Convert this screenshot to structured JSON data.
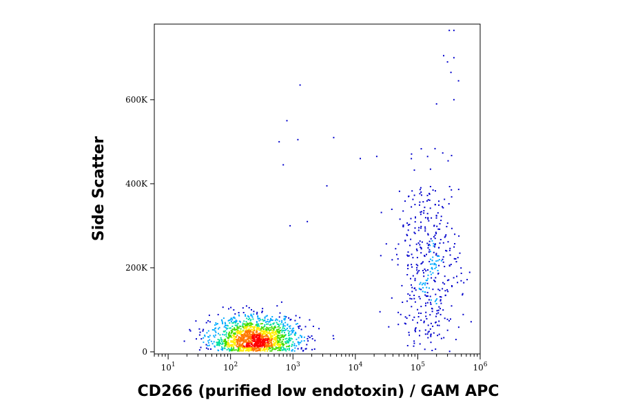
{
  "chart_data": {
    "type": "scatter",
    "style": "flow-cytometry density dot plot",
    "xlabel": "CD266 (purified low endotoxin) / GAM APC",
    "ylabel": "Side Scatter",
    "x_scale": "log",
    "xlim": [
      6,
      1000000
    ],
    "ylim": [
      -5000,
      780000
    ],
    "x_ticks": [
      {
        "value": 10,
        "base": "10",
        "exp": "1"
      },
      {
        "value": 100,
        "base": "10",
        "exp": "2"
      },
      {
        "value": 1000,
        "base": "10",
        "exp": "3"
      },
      {
        "value": 10000,
        "base": "10",
        "exp": "4"
      },
      {
        "value": 100000,
        "base": "10",
        "exp": "5"
      },
      {
        "value": 1000000,
        "base": "10",
        "exp": "6"
      }
    ],
    "y_ticks": [
      {
        "value": 0,
        "label": "0"
      },
      {
        "value": 200000,
        "label": "200K"
      },
      {
        "value": 400000,
        "label": "400K"
      },
      {
        "value": 600000,
        "label": "600K"
      }
    ],
    "grid": false,
    "legend": "none",
    "density_colors": [
      "#0000cc",
      "#00aaff",
      "#00e0a0",
      "#44dd00",
      "#ffee00",
      "#ff7700",
      "#ff0000"
    ],
    "populations": [
      {
        "name_shown": false,
        "x_center": 250,
        "x_log_sd": 0.35,
        "y_center": 30000,
        "y_sd": 30000,
        "count": 1500
      },
      {
        "name_shown": false,
        "x_center": 150000,
        "x_log_sd": 0.25,
        "y_center": 200000,
        "y_sd": 110000,
        "count": 450
      }
    ],
    "outlier_points": [
      {
        "x": 320000,
        "y": 765000
      },
      {
        "x": 380000,
        "y": 765000
      },
      {
        "x": 260000,
        "y": 705000
      },
      {
        "x": 380000,
        "y": 700000
      },
      {
        "x": 300000,
        "y": 690000
      },
      {
        "x": 340000,
        "y": 665000
      },
      {
        "x": 450000,
        "y": 645000
      },
      {
        "x": 1300,
        "y": 635000
      },
      {
        "x": 200000,
        "y": 590000
      },
      {
        "x": 380000,
        "y": 600000
      },
      {
        "x": 800,
        "y": 550000
      },
      {
        "x": 4500,
        "y": 510000
      },
      {
        "x": 600,
        "y": 500000
      },
      {
        "x": 1200,
        "y": 505000
      },
      {
        "x": 22000,
        "y": 465000
      },
      {
        "x": 700,
        "y": 445000
      },
      {
        "x": 12000,
        "y": 460000
      },
      {
        "x": 3500,
        "y": 395000
      },
      {
        "x": 900,
        "y": 300000
      },
      {
        "x": 1700,
        "y": 310000
      }
    ]
  }
}
